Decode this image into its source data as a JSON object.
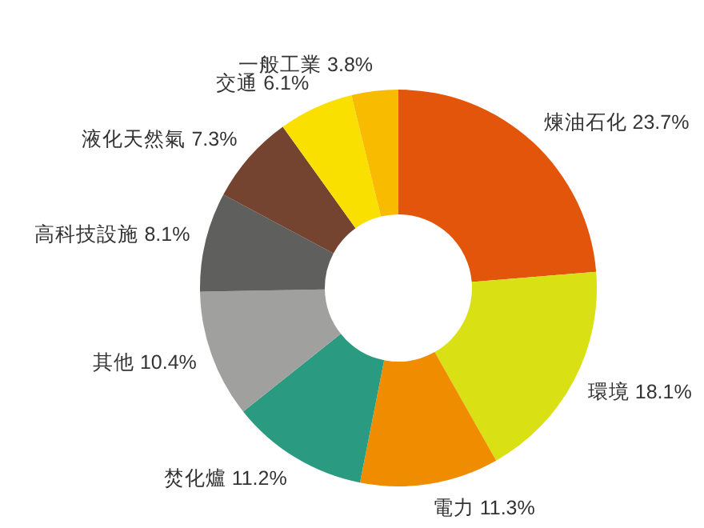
{
  "chart_data": {
    "type": "donut",
    "categories": [
      "煉油石化",
      "環境",
      "電力",
      "焚化爐",
      "其他",
      "高科技設施",
      "液化天然氣",
      "交通",
      "一般工業"
    ],
    "values": [
      23.7,
      18.1,
      11.3,
      11.2,
      10.4,
      8.1,
      7.3,
      6.1,
      3.8
    ],
    "value_labels": [
      "23.7%",
      "18.1%",
      "11.3%",
      "11.2%",
      "10.4%",
      "8.1%",
      "7.3%",
      "6.1%",
      "3.8%"
    ],
    "colors": [
      "#e2550a",
      "#d9e013",
      "#f08c00",
      "#2a9a80",
      "#a0a09e",
      "#5f5f5d",
      "#754430",
      "#f9e000",
      "#f8bb00"
    ]
  }
}
